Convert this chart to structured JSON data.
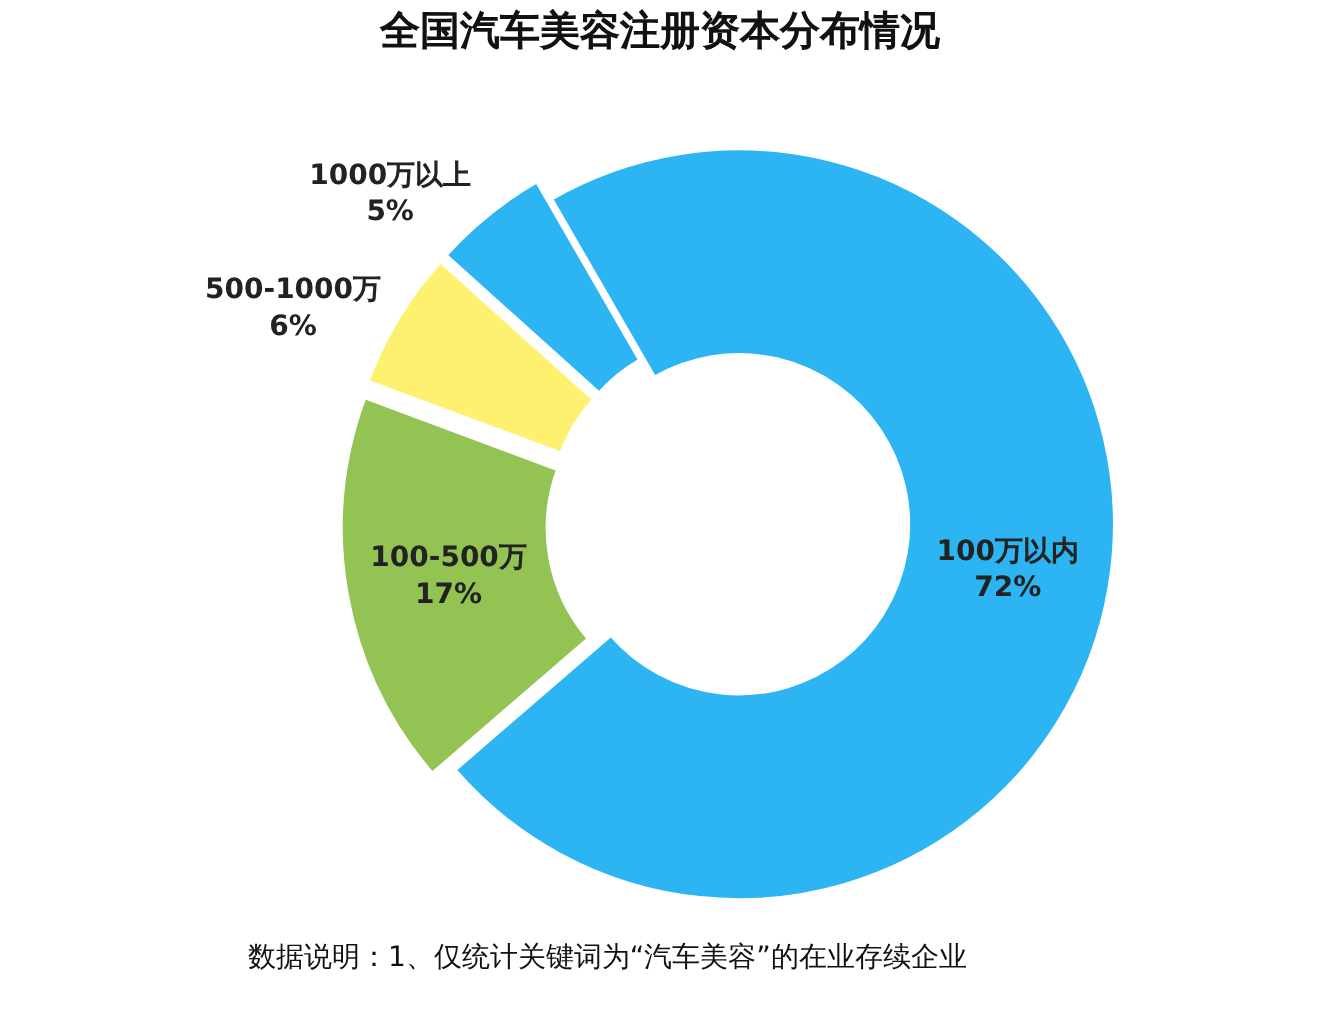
{
  "chart_data": {
    "type": "donut",
    "title": "全国汽车美容注册资本分布情况",
    "categories": [
      "100万以内",
      "100-500万",
      "500-1000万",
      "1000万以上"
    ],
    "values": [
      72,
      17,
      6,
      5
    ],
    "value_labels": [
      "72%",
      "17%",
      "6%",
      "5%"
    ],
    "colors": [
      "#2cb5f2",
      "#92c353",
      "#fff170",
      "#2cb5f2"
    ],
    "legend": false,
    "annotations": [
      "数据说明：1、仅统计关键词为“汽车美容”的在业存续企业"
    ]
  }
}
